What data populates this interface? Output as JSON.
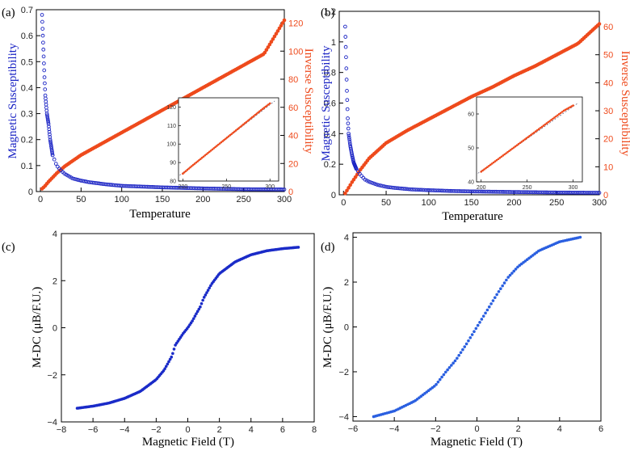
{
  "figure": {
    "colors": {
      "susceptibility": "#1a23c4",
      "inverse": "#ee4a1c",
      "mdc_c": "#1a2bc8",
      "mdc_d": "#2a5fe0",
      "fit": "#555577"
    }
  },
  "chart_data": [
    {
      "id": "a",
      "panel_label": "(a)",
      "type": "scatter",
      "xlabel": "Temperature",
      "ylabel_left": "Magnetic Susceptibility",
      "ylabel_right": "Inverse Susceptibility",
      "xlim": [
        -5,
        300
      ],
      "ylim_left": [
        0,
        0.7
      ],
      "ylim_right": [
        0,
        129.5
      ],
      "xticks": [
        0,
        50,
        100,
        150,
        200,
        250,
        300
      ],
      "yticks_left": [
        0,
        0.1,
        0.2,
        0.3,
        0.4,
        0.5,
        0.6,
        0.7
      ],
      "yticks_right": [
        0,
        20,
        40,
        60,
        80,
        100,
        120
      ],
      "series": [
        {
          "axis": "left",
          "x": [
            2,
            3,
            4,
            5,
            6,
            8,
            10,
            12,
            15,
            20,
            25,
            30,
            40,
            50,
            60,
            80,
            100,
            125,
            150,
            175,
            200,
            250,
            300
          ],
          "values": [
            0.68,
            0.6,
            0.52,
            0.44,
            0.37,
            0.3,
            0.26,
            0.2,
            0.14,
            0.1,
            0.082,
            0.068,
            0.05,
            0.042,
            0.036,
            0.028,
            0.022,
            0.019,
            0.016,
            0.014,
            0.012,
            0.009,
            0.008
          ]
        },
        {
          "axis": "right",
          "x": [
            2,
            5,
            10,
            20,
            30,
            50,
            75,
            100,
            125,
            150,
            175,
            200,
            225,
            250,
            275,
            300
          ],
          "values": [
            2,
            3.5,
            7,
            13,
            18,
            26,
            34,
            42,
            50,
            58,
            66,
            74,
            82,
            90,
            98,
            122
          ]
        }
      ],
      "inset": {
        "xlim": [
          195,
          310
        ],
        "ylim": [
          80,
          125
        ],
        "xticks": [
          200,
          250,
          300
        ],
        "yticks": [
          80,
          90,
          100,
          110,
          120
        ],
        "x": [
          200,
          210,
          220,
          230,
          240,
          250,
          260,
          270,
          280,
          290,
          300
        ],
        "values": [
          84,
          88,
          91.8,
          95.6,
          99.4,
          103.2,
          107,
          110.8,
          114.6,
          118.4,
          122
        ]
      }
    },
    {
      "id": "b",
      "panel_label": "(b)",
      "type": "scatter",
      "xlabel": "Temperature",
      "ylabel_left": "Magnetic Susceptibility",
      "ylabel_right": "Inverse Susceptibility",
      "xlim": [
        -5,
        300
      ],
      "ylim_left": [
        0,
        1.2
      ],
      "ylim_right": [
        0,
        65.5
      ],
      "xticks": [
        0,
        50,
        100,
        150,
        200,
        250,
        300
      ],
      "yticks_left": [
        0,
        0.2,
        0.4,
        0.6,
        0.8,
        1,
        1.2
      ],
      "yticks_right": [
        0,
        10,
        20,
        30,
        40,
        50,
        60
      ],
      "series": [
        {
          "axis": "left",
          "x": [
            2,
            3,
            4,
            5,
            6,
            8,
            10,
            12,
            15,
            20,
            25,
            30,
            40,
            50,
            60,
            80,
            100,
            125,
            150,
            175,
            200,
            250,
            300
          ],
          "values": [
            1.1,
            0.9,
            0.68,
            0.5,
            0.4,
            0.32,
            0.26,
            0.21,
            0.17,
            0.13,
            0.1,
            0.085,
            0.065,
            0.052,
            0.045,
            0.035,
            0.03,
            0.025,
            0.022,
            0.02,
            0.018,
            0.015,
            0.013
          ]
        },
        {
          "axis": "right",
          "x": [
            2,
            5,
            10,
            20,
            30,
            50,
            75,
            100,
            125,
            150,
            175,
            200,
            225,
            250,
            275,
            300
          ],
          "values": [
            0.5,
            2,
            4.5,
            9,
            13,
            18.5,
            23,
            27,
            31,
            35,
            38.5,
            42.5,
            46,
            50,
            54,
            61
          ]
        }
      ],
      "inset": {
        "xlim": [
          195,
          310
        ],
        "ylim": [
          40,
          65
        ],
        "xticks": [
          200,
          250,
          300
        ],
        "yticks": [
          40,
          50,
          60
        ],
        "x": [
          200,
          210,
          220,
          230,
          240,
          250,
          260,
          270,
          280,
          290,
          300
        ],
        "values": [
          43,
          45,
          47,
          49,
          51,
          53,
          55,
          57,
          59,
          61,
          62.5
        ]
      }
    },
    {
      "id": "c",
      "panel_label": "(c)",
      "type": "scatter",
      "xlabel": "Magnetic Field (T)",
      "ylabel": "M-DC (μB/F.U.)",
      "xlim": [
        -8,
        8
      ],
      "ylim": [
        -4,
        4
      ],
      "xticks": [
        -8,
        -6,
        -4,
        -2,
        0,
        2,
        4,
        6,
        8
      ],
      "yticks": [
        -4,
        -2,
        0,
        2,
        4
      ],
      "series": [
        {
          "x": [
            -7,
            -6,
            -5,
            -4,
            -3,
            -2,
            -1.5,
            -1,
            -0.8,
            -0.5,
            -0.3,
            0,
            0.3,
            0.5,
            0.8,
            1,
            1.5,
            2,
            3,
            4,
            5,
            6,
            7
          ],
          "values": [
            -3.42,
            -3.33,
            -3.2,
            -3.0,
            -2.7,
            -2.2,
            -1.8,
            -1.2,
            -0.75,
            -0.45,
            -0.25,
            0,
            0.3,
            0.55,
            0.9,
            1.25,
            1.85,
            2.3,
            2.8,
            3.1,
            3.27,
            3.36,
            3.42
          ]
        }
      ]
    },
    {
      "id": "d",
      "panel_label": "(d)",
      "type": "scatter",
      "xlabel": "Magnetic Field (T)",
      "ylabel": "M-DC (μB/F.U.)",
      "xlim": [
        -6,
        6
      ],
      "ylim": [
        -4.2,
        4.2
      ],
      "xticks": [
        -6,
        -4,
        -2,
        0,
        2,
        4,
        6
      ],
      "yticks": [
        -4,
        -2,
        0,
        2,
        4
      ],
      "series": [
        {
          "x": [
            -5,
            -4,
            -3,
            -2,
            -1.5,
            -1,
            -0.5,
            0,
            0.5,
            1,
            1.5,
            2,
            3,
            4,
            5
          ],
          "values": [
            -4.0,
            -3.75,
            -3.3,
            -2.6,
            -2.0,
            -1.45,
            -0.75,
            0,
            0.75,
            1.5,
            2.2,
            2.7,
            3.4,
            3.8,
            4.0
          ]
        }
      ]
    }
  ]
}
